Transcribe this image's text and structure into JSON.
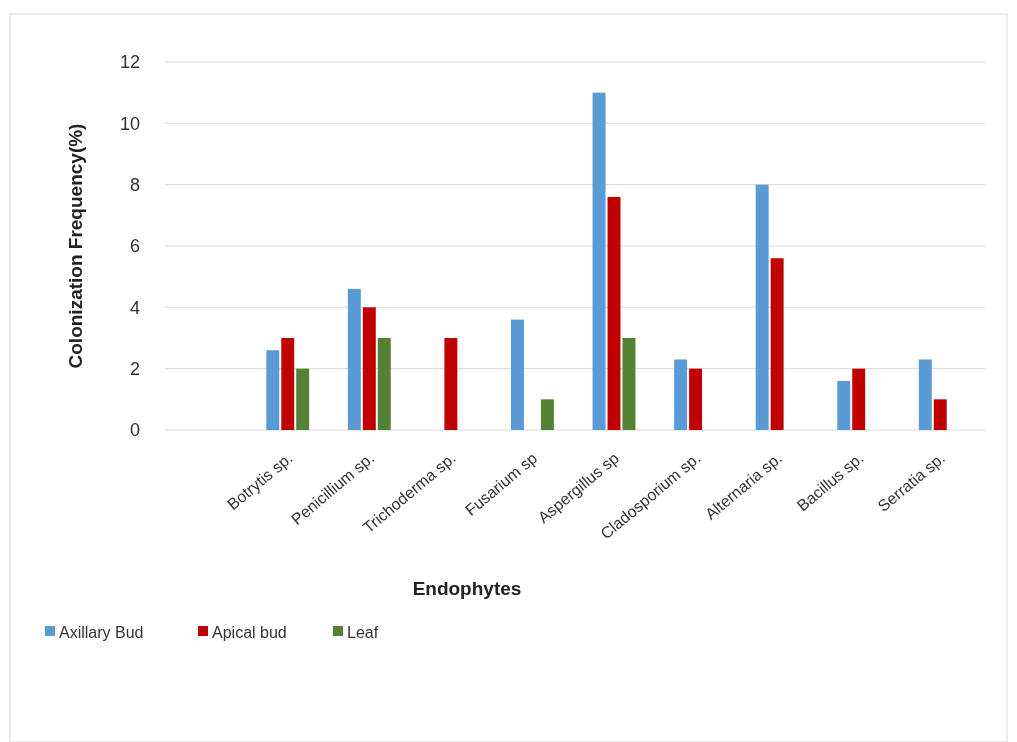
{
  "chart_data": {
    "type": "bar",
    "xlabel": "Endophytes",
    "ylabel": "Colonization Frequency(%)",
    "categories": [
      "Botrytis sp.",
      "Penicillium sp.",
      "Trichoderma sp.",
      "Fusarium sp",
      "Aspergillus sp",
      "Cladosporium sp.",
      "Alternaria sp.",
      "Bacillus sp.",
      "Serratia sp."
    ],
    "series": [
      {
        "name": "Axillary Bud",
        "color": "#5b9bd5",
        "values": [
          2.6,
          4.6,
          0,
          3.6,
          11,
          2.3,
          8,
          1.6,
          2.3
        ]
      },
      {
        "name": "Apical bud",
        "color": "#c00000",
        "values": [
          3,
          4,
          3,
          0,
          7.6,
          2,
          5.6,
          2,
          1
        ]
      },
      {
        "name": "Leaf",
        "color": "#548235",
        "values": [
          2,
          3,
          0,
          1,
          3,
          0,
          0,
          0,
          0
        ]
      }
    ],
    "ylim": [
      0,
      12
    ],
    "yticks": [
      0,
      2,
      4,
      6,
      8,
      10,
      12
    ],
    "grid": "y",
    "legend": "bottom left"
  }
}
